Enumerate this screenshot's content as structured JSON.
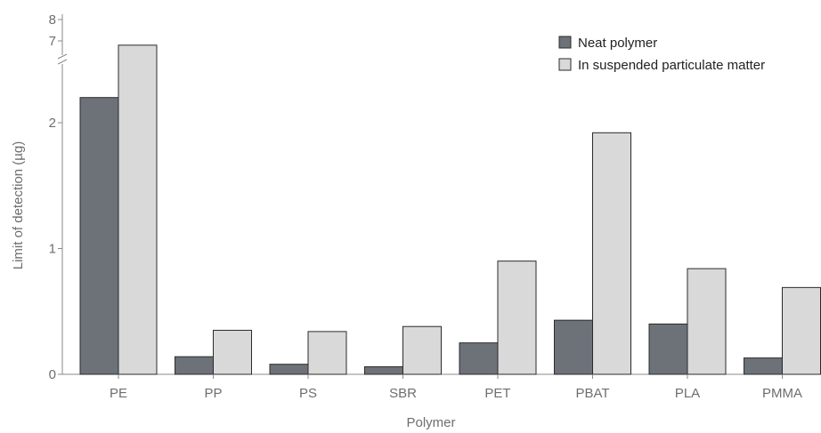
{
  "chart_data": {
    "type": "bar",
    "categories": [
      "PE",
      "PP",
      "PS",
      "SBR",
      "PET",
      "PBAT",
      "PLA",
      "PMMA"
    ],
    "series": [
      {
        "name": "Neat polymer",
        "color": "#6d7178",
        "values": [
          2.2,
          0.14,
          0.08,
          0.06,
          0.25,
          0.43,
          0.4,
          0.13
        ]
      },
      {
        "name": "In suspended particulate matter",
        "color": "#d9d9d9",
        "values": [
          6.8,
          0.35,
          0.34,
          0.38,
          0.9,
          1.92,
          0.84,
          0.69
        ]
      }
    ],
    "xlabel": "Polymer",
    "ylabel": "Limit of detection (µg)",
    "y_ticks": [
      "0",
      "1",
      "2",
      "7",
      "8"
    ],
    "y_axis_break": {
      "lower_segment": [
        0,
        2.5
      ],
      "upper_segment": [
        7,
        8
      ]
    },
    "legend_position": "top-right"
  }
}
